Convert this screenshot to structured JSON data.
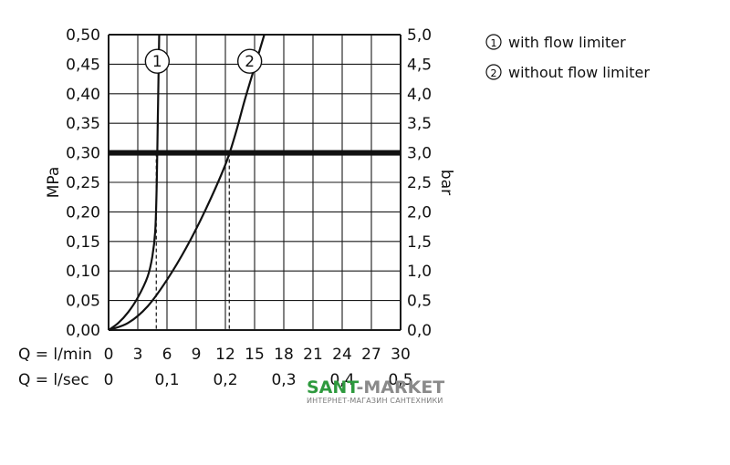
{
  "chart_data": {
    "type": "line",
    "y_left_label": "MPa",
    "y_right_label": "bar",
    "y_left_ticks": [
      "0,00",
      "0,05",
      "0,10",
      "0,15",
      "0,20",
      "0,25",
      "0,30",
      "0,35",
      "0,40",
      "0,45",
      "0,50"
    ],
    "y_right_ticks": [
      "0,0",
      "0,5",
      "1,0",
      "1,5",
      "2,0",
      "2,5",
      "3,0",
      "3,5",
      "4,0",
      "4,5",
      "5,0"
    ],
    "ylim": [
      0,
      0.5
    ],
    "xlim": [
      0,
      30
    ],
    "x_ticks_lmin": [
      "0",
      "3",
      "6",
      "9",
      "12",
      "15",
      "18",
      "21",
      "24",
      "27",
      "30"
    ],
    "x_row1_label": "Q = l/min",
    "x_row2_label": "Q = l/sec",
    "x_ticks_lsec": [
      {
        "label": "0",
        "q": 0
      },
      {
        "label": "0,1",
        "q": 6
      },
      {
        "label": "0,2",
        "q": 12
      },
      {
        "label": "0,3",
        "q": 18
      },
      {
        "label": "0,4",
        "q": 24
      },
      {
        "label": "0,5",
        "q": 30
      }
    ],
    "reference_pressure": 0.3,
    "series": [
      {
        "name": "with flow limiter",
        "marker": "1",
        "marker_at": {
          "x": 5.0,
          "y": 0.455
        },
        "drop_line_x": 4.9,
        "points": [
          [
            0,
            0
          ],
          [
            1,
            0.012
          ],
          [
            2,
            0.03
          ],
          [
            3,
            0.055
          ],
          [
            4,
            0.09
          ],
          [
            4.5,
            0.125
          ],
          [
            4.8,
            0.17
          ],
          [
            4.95,
            0.25
          ],
          [
            5.05,
            0.35
          ],
          [
            5.15,
            0.45
          ],
          [
            5.2,
            0.5
          ]
        ]
      },
      {
        "name": "without flow limiter",
        "marker": "2",
        "marker_at": {
          "x": 14.5,
          "y": 0.455
        },
        "drop_line_x": 12.4,
        "points": [
          [
            0,
            0
          ],
          [
            2,
            0.012
          ],
          [
            4,
            0.04
          ],
          [
            6,
            0.085
          ],
          [
            8,
            0.14
          ],
          [
            10,
            0.205
          ],
          [
            12,
            0.28
          ],
          [
            13,
            0.33
          ],
          [
            14,
            0.39
          ],
          [
            15,
            0.445
          ],
          [
            16,
            0.5
          ]
        ]
      }
    ]
  },
  "legend": [
    {
      "symbol": "1",
      "text": "with flow limiter"
    },
    {
      "symbol": "2",
      "text": "without flow limiter"
    }
  ],
  "watermark": {
    "brand_a": "SANT",
    "brand_b": "-MARKET",
    "tagline": "ИНТЕРНЕТ-МАГАЗИН САНТЕХНИКИ"
  },
  "colors": {
    "line": "#111111",
    "grid": "#1a1a1a",
    "brand_green": "#2e9a3e",
    "brand_gray": "#8a8a8a"
  }
}
